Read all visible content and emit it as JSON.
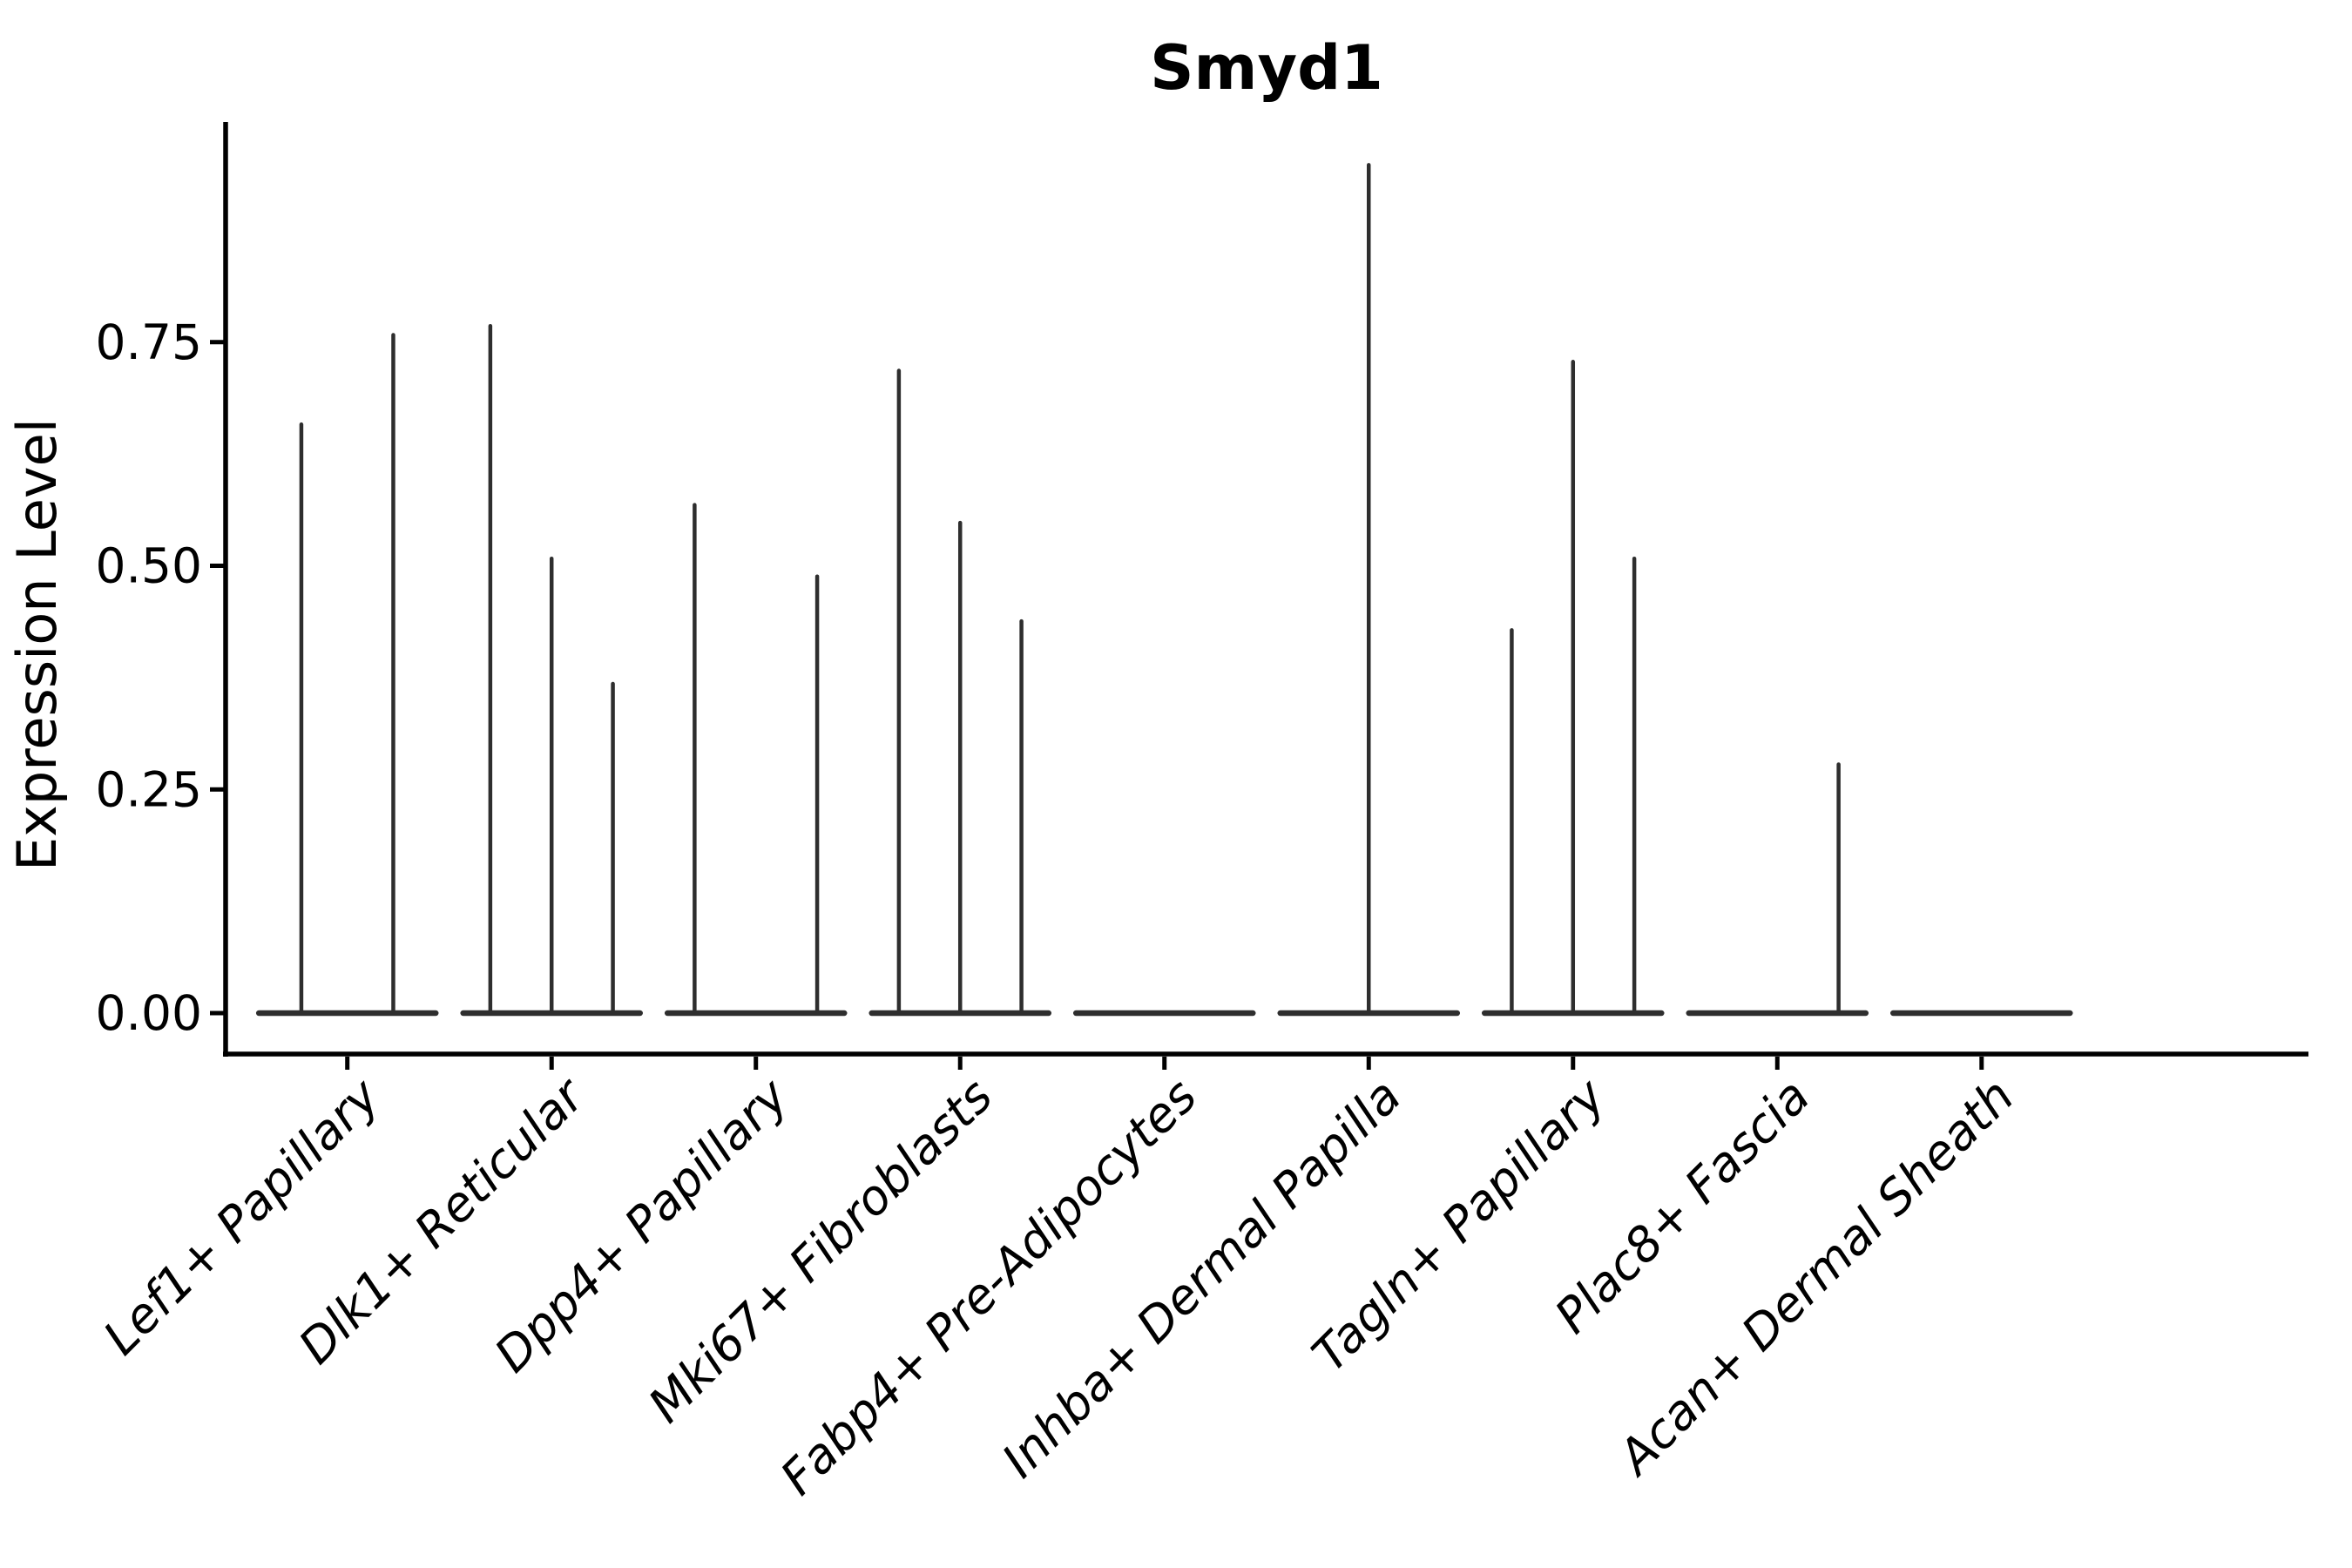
{
  "title": "Smyd1",
  "y_axis": {
    "label": "Expression Level",
    "tick_labels": [
      "0.00",
      "0.25",
      "0.50",
      "0.75"
    ]
  },
  "colors": {
    "background": "#ffffff",
    "violin": "#2e2e2e",
    "axis": "#000000",
    "text": "#000000"
  },
  "chart_data": {
    "type": "violin",
    "title": "Smyd1",
    "xlabel": "",
    "ylabel": "Expression Level",
    "ylim": [
      -0.05,
      1.0
    ],
    "y_ticks": [
      0,
      0.25,
      0.5,
      0.75
    ],
    "grid": false,
    "legend": false,
    "x_label_angle": 45,
    "categories": [
      "Lef1+ Papillary",
      "Dlk1+ Reticular",
      "Dpp4+ Papillary",
      "Mki67+ Fibroblasts",
      "Fabp4+ Pre-Adipocytes",
      "Inhba+ Dermal Papilla",
      "Tagln+ Papillary",
      "Plac8+ Fascia",
      "Acan+ Dermal Sheath"
    ],
    "violin_base_halfwidth": 0.45,
    "series": [
      {
        "category": "Lef1+ Papillary",
        "spikes": [
          {
            "offset": -0.225,
            "max": 0.66
          },
          {
            "offset": 0.225,
            "max": 0.76
          }
        ]
      },
      {
        "category": "Dlk1+ Reticular",
        "spikes": [
          {
            "offset": -0.3,
            "max": 0.77
          },
          {
            "offset": 0,
            "max": 0.51
          },
          {
            "offset": 0.3,
            "max": 0.37
          }
        ]
      },
      {
        "category": "Dpp4+ Papillary",
        "spikes": [
          {
            "offset": -0.3,
            "max": 0.57
          },
          {
            "offset": 0.3,
            "max": 0.49
          }
        ]
      },
      {
        "category": "Mki67+ Fibroblasts",
        "spikes": [
          {
            "offset": -0.3,
            "max": 0.72
          },
          {
            "offset": 0,
            "max": 0.55
          },
          {
            "offset": 0.3,
            "max": 0.44
          }
        ]
      },
      {
        "category": "Fabp4+ Pre-Adipocytes",
        "spikes": []
      },
      {
        "category": "Inhba+ Dermal Papilla",
        "spikes": [
          {
            "offset": 0,
            "max": 0.95
          }
        ]
      },
      {
        "category": "Tagln+ Papillary",
        "spikes": [
          {
            "offset": -0.3,
            "max": 0.43
          },
          {
            "offset": 0,
            "max": 0.73
          },
          {
            "offset": 0.3,
            "max": 0.51
          }
        ]
      },
      {
        "category": "Plac8+ Fascia",
        "spikes": [
          {
            "offset": 0.3,
            "max": 0.28
          }
        ]
      },
      {
        "category": "Acan+ Dermal Sheath",
        "spikes": []
      }
    ]
  }
}
